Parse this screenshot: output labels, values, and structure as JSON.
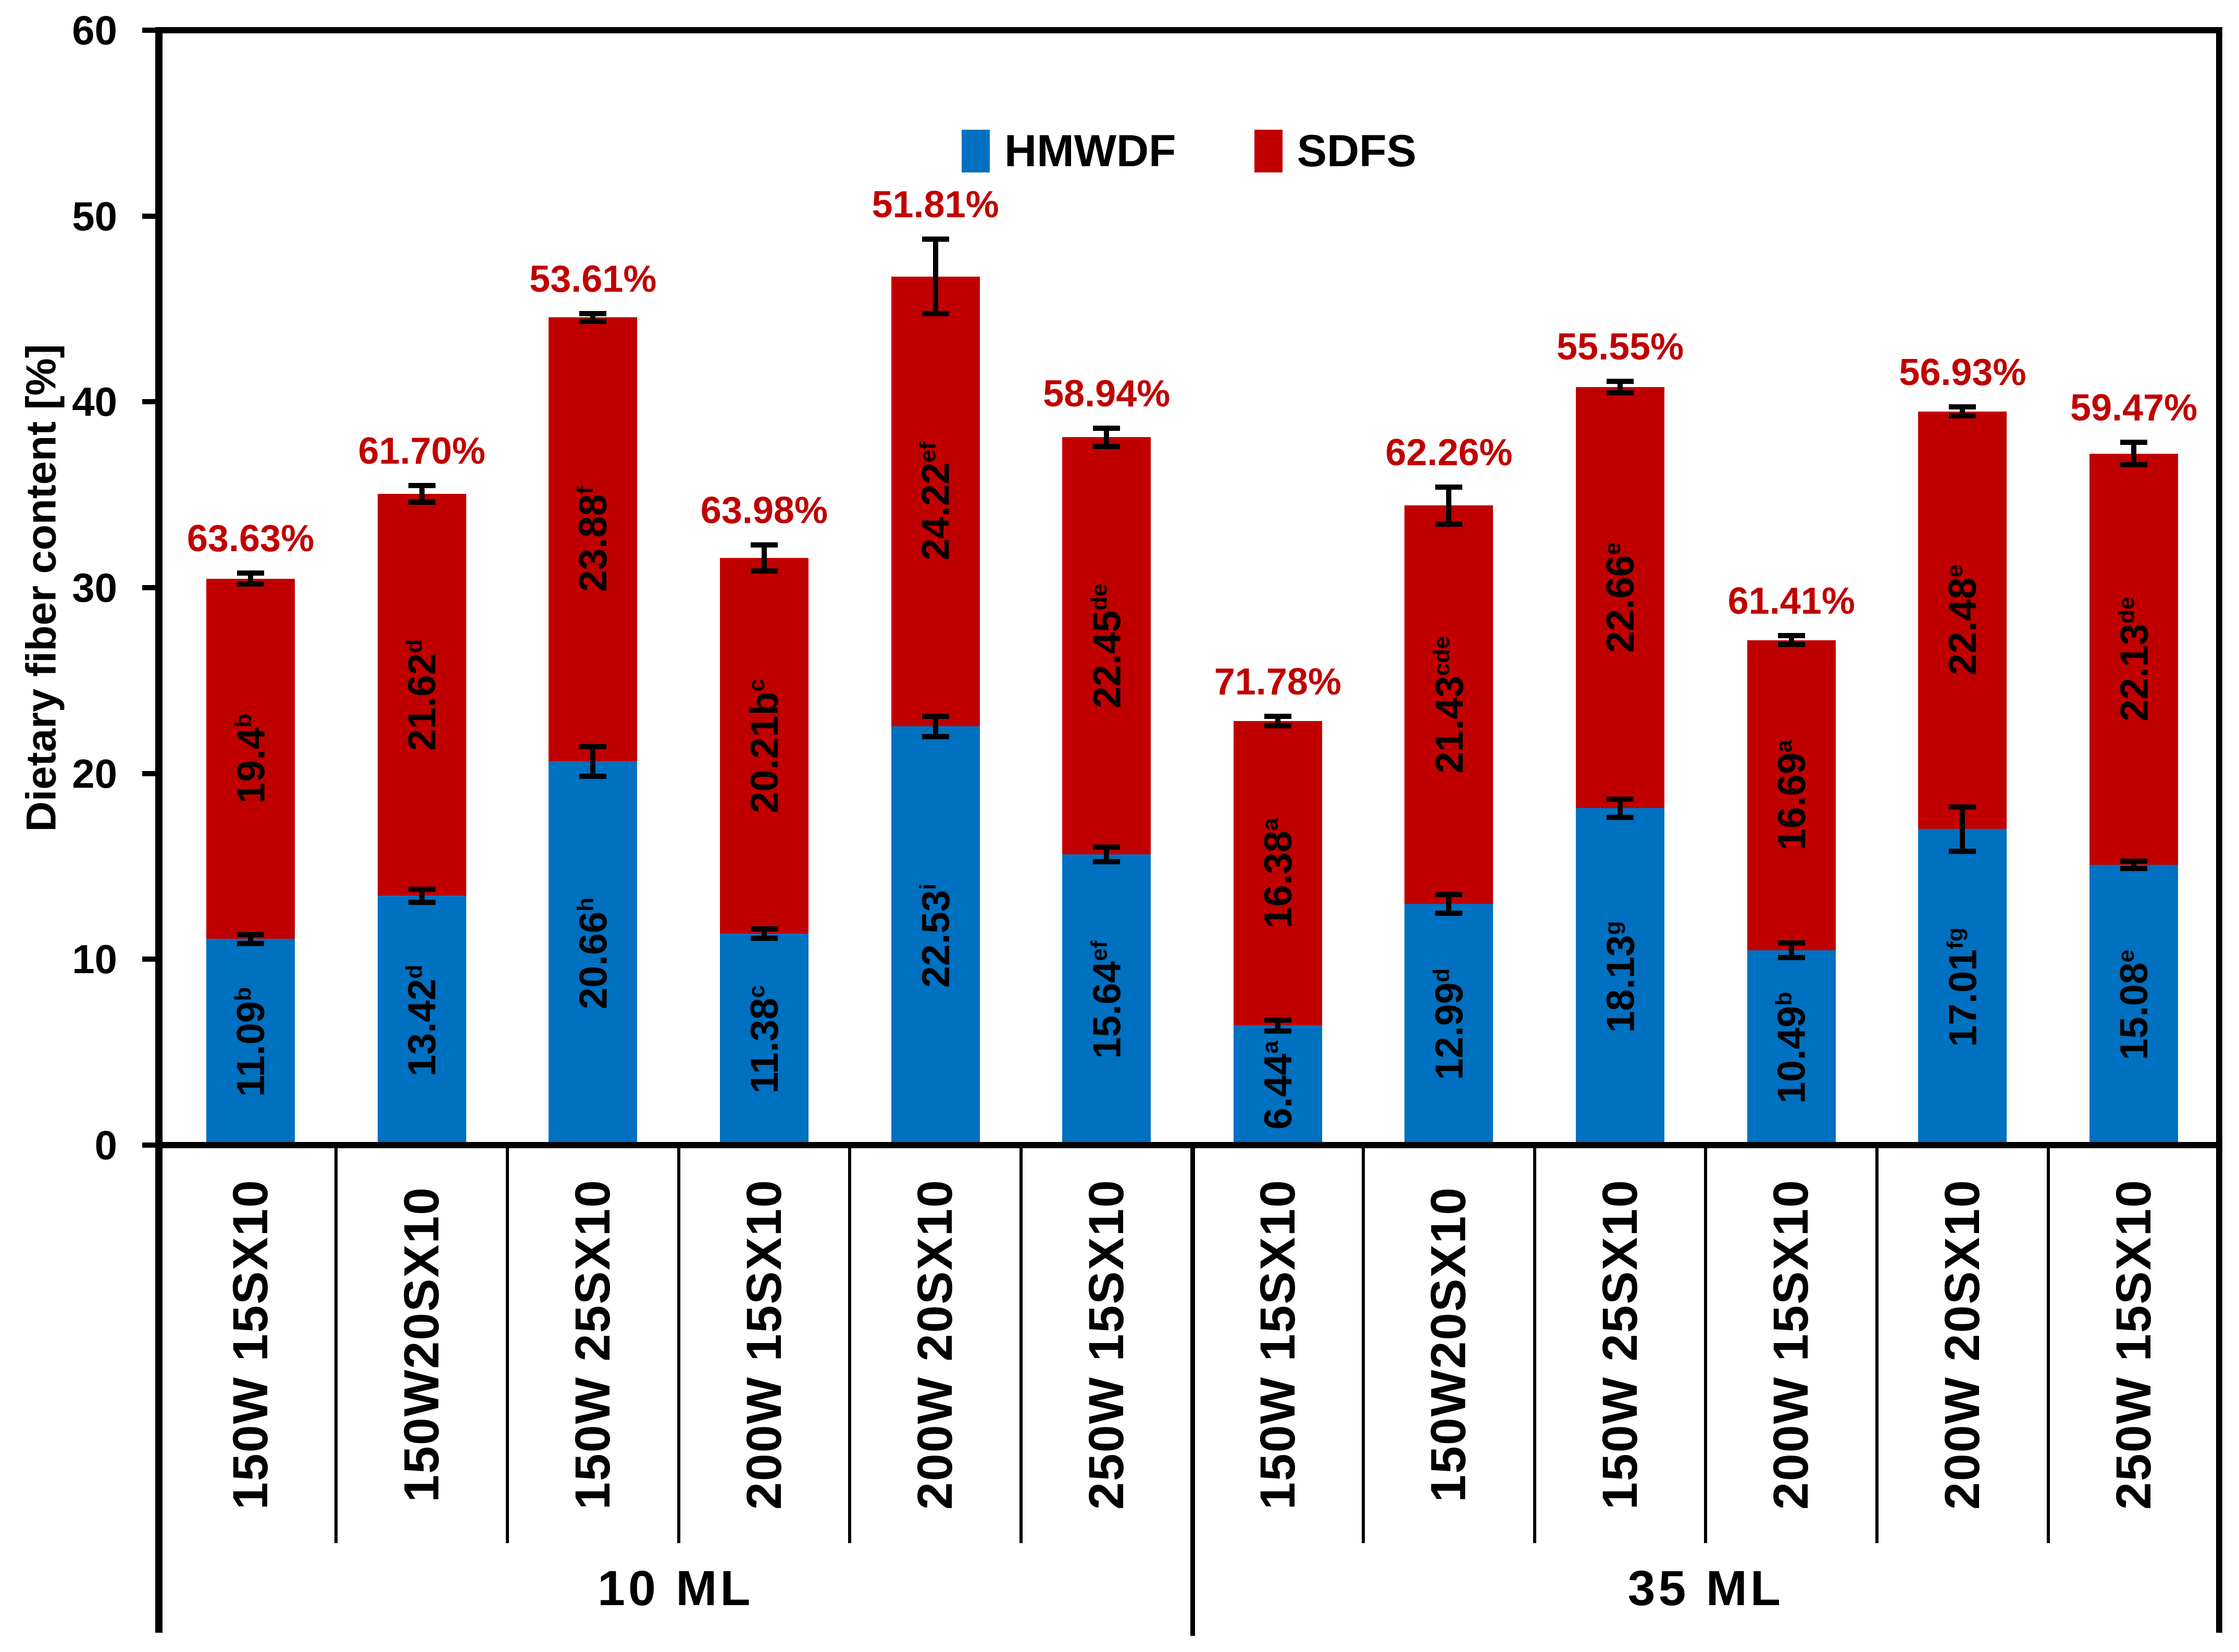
{
  "figure": {
    "background": "#FFFFFF"
  },
  "legend": {
    "items": [
      {
        "label": "HMWDF",
        "color": "#0070C0"
      },
      {
        "label": "SDFS",
        "color": "#C00000"
      }
    ]
  },
  "y_axis": {
    "label": "Dietary fiber content [%]",
    "tick_labels": [
      "0",
      "10",
      "20",
      "30",
      "40",
      "50",
      "60"
    ]
  },
  "x_axis": {
    "group_labels": [
      "10 ML",
      "35 ML"
    ]
  },
  "chart_data": {
    "type": "bar",
    "stacked": true,
    "grid": false,
    "legend_position": "top-center",
    "title": "",
    "xlabel": "",
    "ylabel": "Dietary fiber content [%]",
    "ylim": [
      0,
      60
    ],
    "yticks": [
      0,
      10,
      20,
      30,
      40,
      50,
      60
    ],
    "groups": [
      {
        "label": "10 ML",
        "size": 6
      },
      {
        "label": "35 ML",
        "size": 6
      }
    ],
    "categories": [
      "150W 15SX10",
      "150W20SX10",
      "150W 25SX10",
      "200W 15SX10",
      "200W 20SX10",
      "250W 15SX10",
      "150W 15SX10",
      "150W20SX10",
      "150W 25SX10",
      "200W 15SX10",
      "200W 20SX10",
      "250W 15SX10"
    ],
    "series": [
      {
        "name": "HMWDF",
        "color": "#0070C0",
        "values": [
          11.09,
          13.42,
          20.66,
          11.38,
          22.53,
          15.64,
          6.44,
          12.99,
          18.13,
          10.49,
          17.01,
          15.08
        ],
        "value_labels": [
          "11.09",
          "13.42",
          "20.66",
          "11.38",
          "22.53",
          "15.64",
          "6.44",
          "12.99",
          "18.13",
          "10.49",
          "17.01",
          "15.08"
        ],
        "superscripts": [
          "b",
          "d",
          "h",
          "c",
          "i",
          "ef",
          "a",
          "d",
          "g",
          "b",
          "fg",
          "e"
        ],
        "error_bars": [
          0.25,
          0.35,
          0.8,
          0.25,
          0.55,
          0.4,
          0.3,
          0.5,
          0.5,
          0.4,
          1.2,
          0.2
        ]
      },
      {
        "name": "SDFS",
        "color": "#C00000",
        "values": [
          19.4,
          21.62,
          23.88,
          20.21,
          24.22,
          22.45,
          16.38,
          21.43,
          22.66,
          16.69,
          22.48,
          22.13
        ],
        "value_labels": [
          "19.4",
          "21.62",
          "23.88",
          "20.21b",
          "24.22",
          "22.45",
          "16.38",
          "21.43",
          "22.66",
          "16.69",
          "22.48",
          "22.13"
        ],
        "superscripts": [
          "b",
          "d",
          "f",
          "c",
          "ef",
          "de",
          "a",
          "cde",
          "e",
          "a",
          "e",
          "de"
        ],
        "error_bars": [
          0.3,
          0.45,
          0.2,
          0.7,
          2.0,
          0.5,
          0.25,
          1.0,
          0.3,
          0.25,
          0.25,
          0.6
        ]
      }
    ],
    "stack_total_labels": [
      "63.63%",
      "61.70%",
      "53.61%",
      "63.98%",
      "51.81%",
      "58.94%",
      "71.78%",
      "62.26%",
      "55.55%",
      "61.41%",
      "56.93%",
      "59.47%"
    ],
    "stack_total_label_color": "#C00000",
    "error_bar_color": "#000000"
  }
}
